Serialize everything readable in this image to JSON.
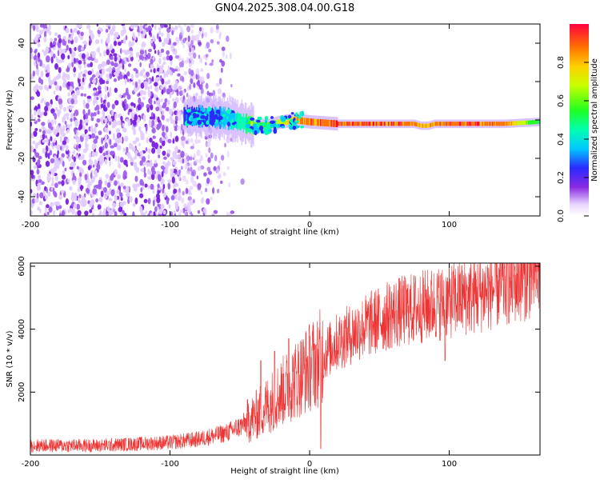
{
  "title": "GN04.2025.308.04.00.G18",
  "chart_data": [
    {
      "type": "heatmap",
      "title": "GN04.2025.308.04.00.G18",
      "xlabel": "Height of straight line (km)",
      "ylabel": "Frequency (Hz)",
      "xlim": [
        -200,
        165
      ],
      "ylim": [
        -50,
        50
      ],
      "xticks": [
        -200,
        -100,
        0,
        100
      ],
      "yticks": [
        -40,
        -20,
        0,
        20,
        40
      ],
      "colorbar": {
        "label": "Normalized spectral amplitude",
        "range": [
          0,
          1
        ],
        "ticks": [
          "0.0",
          "0.2",
          "0.4",
          "0.6",
          "0.8"
        ]
      },
      "ridge": {
        "x": [
          -90,
          -80,
          -70,
          -60,
          -50,
          -40,
          -30,
          -20,
          -10,
          0,
          10,
          20,
          40,
          60,
          75,
          80,
          85,
          90,
          100,
          120,
          140,
          165
        ],
        "freq": [
          2,
          2,
          1.5,
          1,
          -1,
          -3,
          -3,
          -1,
          0,
          -1,
          -1.5,
          -2,
          -2,
          -2,
          -2,
          -3,
          -3,
          -2,
          -2,
          -2,
          -2,
          -1
        ],
        "amplitude": [
          0.3,
          0.3,
          0.3,
          0.35,
          0.45,
          0.65,
          0.6,
          0.7,
          0.85,
          0.9,
          0.95,
          0.95,
          0.95,
          0.95,
          0.9,
          0.85,
          0.85,
          0.9,
          0.95,
          0.95,
          0.9,
          0.5
        ]
      },
      "noise_region_x": [
        -200,
        -55
      ]
    },
    {
      "type": "line",
      "xlabel": "Height of straight line (km)",
      "ylabel": "SNR (10 * v/v)",
      "xlim": [
        -200,
        165
      ],
      "ylim": [
        0,
        6100
      ],
      "xticks": [
        -200,
        -100,
        0,
        100
      ],
      "yticks": [
        2000,
        4000,
        6000
      ],
      "color": "#ee3333",
      "trend": {
        "x": [
          -200,
          -150,
          -100,
          -80,
          -60,
          -50,
          -40,
          -30,
          -20,
          -10,
          0,
          10,
          20,
          40,
          60,
          80,
          100,
          120,
          140,
          165
        ],
        "y": [
          300,
          300,
          400,
          500,
          700,
          900,
          1200,
          1600,
          2000,
          2400,
          2800,
          3200,
          3600,
          4100,
          4500,
          4700,
          4900,
          5100,
          5400,
          5800
        ]
      },
      "spikes": [
        {
          "x": -35,
          "y": 3000
        },
        {
          "x": -25,
          "y": 3300
        },
        {
          "x": -15,
          "y": 3700
        },
        {
          "x": 5,
          "y": 3500
        },
        {
          "x": 8,
          "y": 200
        },
        {
          "x": 97,
          "y": 3000
        }
      ]
    }
  ]
}
